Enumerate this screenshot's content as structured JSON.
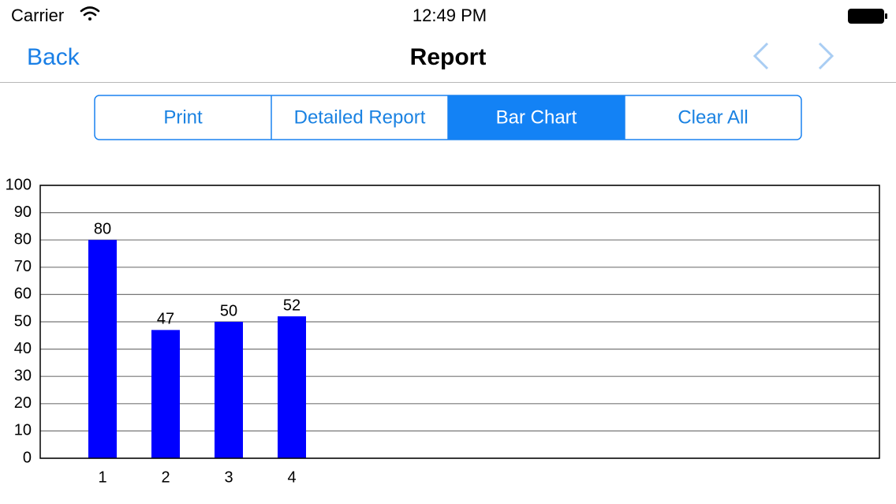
{
  "status_bar": {
    "carrier": "Carrier",
    "time": "12:49 PM"
  },
  "nav": {
    "back": "Back",
    "title": "Report"
  },
  "segments": {
    "items": [
      "Print",
      "Detailed Report",
      "Bar Chart",
      "Clear All"
    ],
    "selected": 2
  },
  "chart_data": {
    "type": "bar",
    "categories": [
      "1",
      "2",
      "3",
      "4"
    ],
    "values": [
      80,
      47,
      50,
      52
    ],
    "color": "#0000ff",
    "ylim": [
      0,
      100
    ],
    "yticks": [
      0,
      10,
      20,
      30,
      40,
      50,
      60,
      70,
      80,
      90,
      100
    ],
    "grid": true
  }
}
